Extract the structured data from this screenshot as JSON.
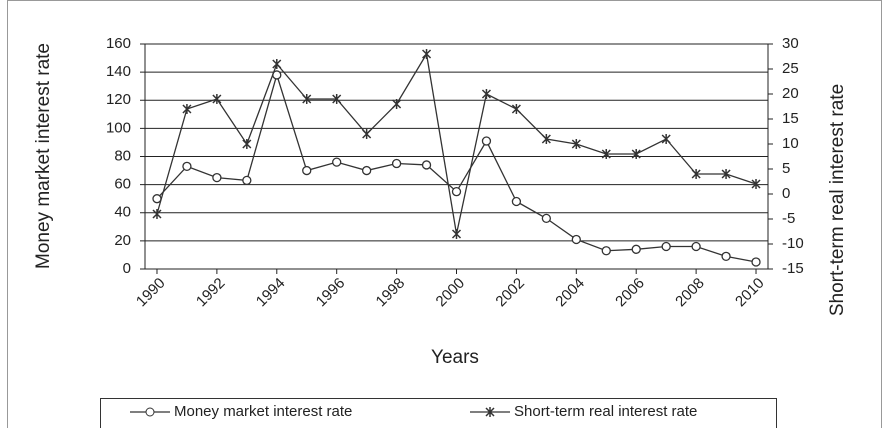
{
  "chart_data": {
    "type": "line",
    "x_label": "Years",
    "y_label": "Money market interest rate",
    "y2_label": "Short-term real interest rate",
    "x": [
      1990,
      1991,
      1992,
      1993,
      1994,
      1995,
      1996,
      1997,
      1998,
      1999,
      2000,
      2001,
      2002,
      2003,
      2004,
      2005,
      2006,
      2007,
      2008,
      2009,
      2010
    ],
    "series": [
      {
        "name": "Money market interest rate",
        "color": "#333333",
        "marker": "circle",
        "values": [
          50,
          73,
          65,
          63,
          138,
          70,
          76,
          70,
          75,
          74,
          55,
          91,
          48,
          36,
          21,
          13,
          14,
          16,
          16,
          9,
          5
        ]
      },
      {
        "name": "Short-term real interest rate",
        "color": "#333333",
        "marker": "star",
        "axis": "y2",
        "values": [
          -4,
          17,
          19,
          10,
          26,
          19,
          19,
          12,
          18,
          28,
          -8,
          20,
          17,
          11,
          10,
          8,
          8,
          11,
          4,
          4,
          2
        ]
      }
    ],
    "xlim": [
      1989.6,
      2010.4
    ],
    "xticks": [
      1990,
      1992,
      1994,
      1996,
      1998,
      2000,
      2002,
      2004,
      2006,
      2008,
      2010
    ],
    "ylim": [
      0,
      160
    ],
    "yticks": [
      0,
      20,
      40,
      60,
      80,
      100,
      120,
      140,
      160
    ],
    "y2lim": [
      -15,
      30
    ],
    "y2ticks": [
      -15,
      -10,
      -5,
      0,
      5,
      10,
      15,
      20,
      25,
      30
    ],
    "grid": true
  }
}
